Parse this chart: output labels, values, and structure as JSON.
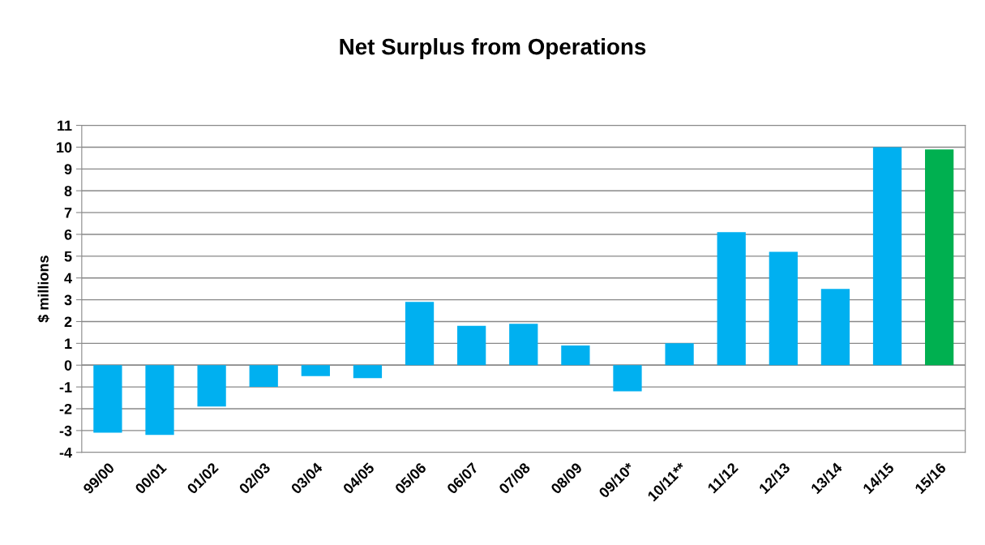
{
  "chart_data": {
    "type": "bar",
    "title": "Net Surplus from Operations",
    "ylabel": "$ millions",
    "categories": [
      "99/00",
      "00/01",
      "01/02",
      "02/03",
      "03/04",
      "04/05",
      "05/06",
      "06/07",
      "07/08",
      "08/09",
      "09/10*",
      "10/11**",
      "11/12",
      "12/13",
      "13/14",
      "14/15",
      "15/16"
    ],
    "values": [
      -3.1,
      -3.2,
      -1.9,
      -1.0,
      -0.5,
      -0.6,
      2.9,
      1.8,
      1.9,
      0.9,
      -1.2,
      1.0,
      6.1,
      5.2,
      3.5,
      10.0,
      9.9
    ],
    "colors": [
      "#00b0f0",
      "#00b0f0",
      "#00b0f0",
      "#00b0f0",
      "#00b0f0",
      "#00b0f0",
      "#00b0f0",
      "#00b0f0",
      "#00b0f0",
      "#00b0f0",
      "#00b0f0",
      "#00b0f0",
      "#00b0f0",
      "#00b0f0",
      "#00b0f0",
      "#00b0f0",
      "#00b050"
    ],
    "ylim": [
      -4,
      11
    ],
    "yticks": [
      -4,
      -3,
      -2,
      -1,
      0,
      1,
      2,
      3,
      4,
      5,
      6,
      7,
      8,
      9,
      10,
      11
    ],
    "grid": "y"
  }
}
